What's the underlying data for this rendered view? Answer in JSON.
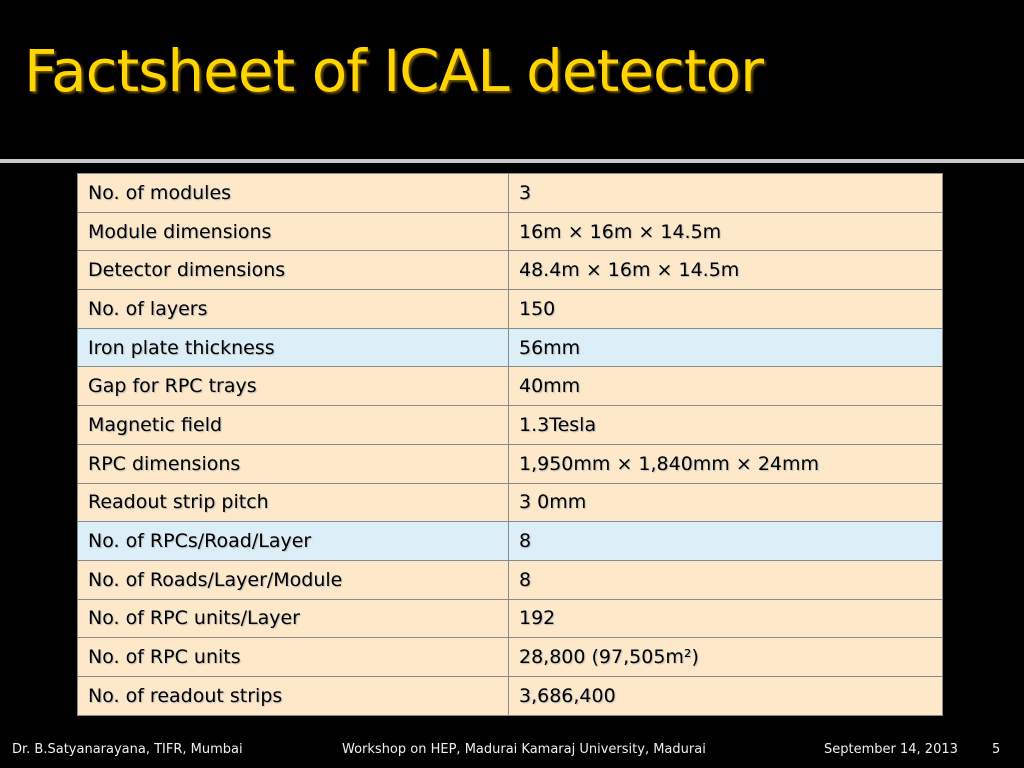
{
  "slide": {
    "title": "Factsheet of ICAL detector",
    "rows": [
      {
        "label": "No. of  modules",
        "value": "3",
        "alt": false
      },
      {
        "label": "Module dimensions",
        "value": "16m × 16m × 14.5m",
        "alt": false
      },
      {
        "label": "Detector dimensions",
        "value": "48.4m × 16m × 14.5m",
        "alt": false
      },
      {
        "label": "No. of  layers",
        "value": "150",
        "alt": false
      },
      {
        "label": "Iron plate thickness",
        "value": "56mm",
        "alt": true
      },
      {
        "label": "Gap for RPC trays",
        "value": "40mm",
        "alt": false
      },
      {
        "label": "Magnetic field",
        "value": "1.3Tesla",
        "alt": false
      },
      {
        "label": "RPC dimensions",
        "value": "1,950mm × 1,840mm × 24mm",
        "alt": false
      },
      {
        "label": "Readout strip pitch",
        "value": "3 0mm",
        "alt": false
      },
      {
        "label": "No. of  RPCs/Road/Layer",
        "value": "8",
        "alt": true
      },
      {
        "label": "No. of  Roads/Layer/Module",
        "value": "8",
        "alt": false
      },
      {
        "label": "No. of  RPC units/Layer",
        "value": "192",
        "alt": false
      },
      {
        "label": "No. of  RPC units",
        "value": "28,800 (97,505m²)",
        "alt": false
      },
      {
        "label": "No. of readout strips",
        "value": "3,686,400",
        "alt": false
      }
    ]
  },
  "footer": {
    "author": "Dr. B.Satyanarayana, TIFR, Mumbai",
    "event": "Workshop on HEP, Madurai Kamaraj University, Madurai",
    "date": "September 14, 2013",
    "page": "5"
  },
  "colors": {
    "title": "#ffd400",
    "row_bg": "#fde9c9",
    "row_alt_bg": "#dceef8"
  }
}
